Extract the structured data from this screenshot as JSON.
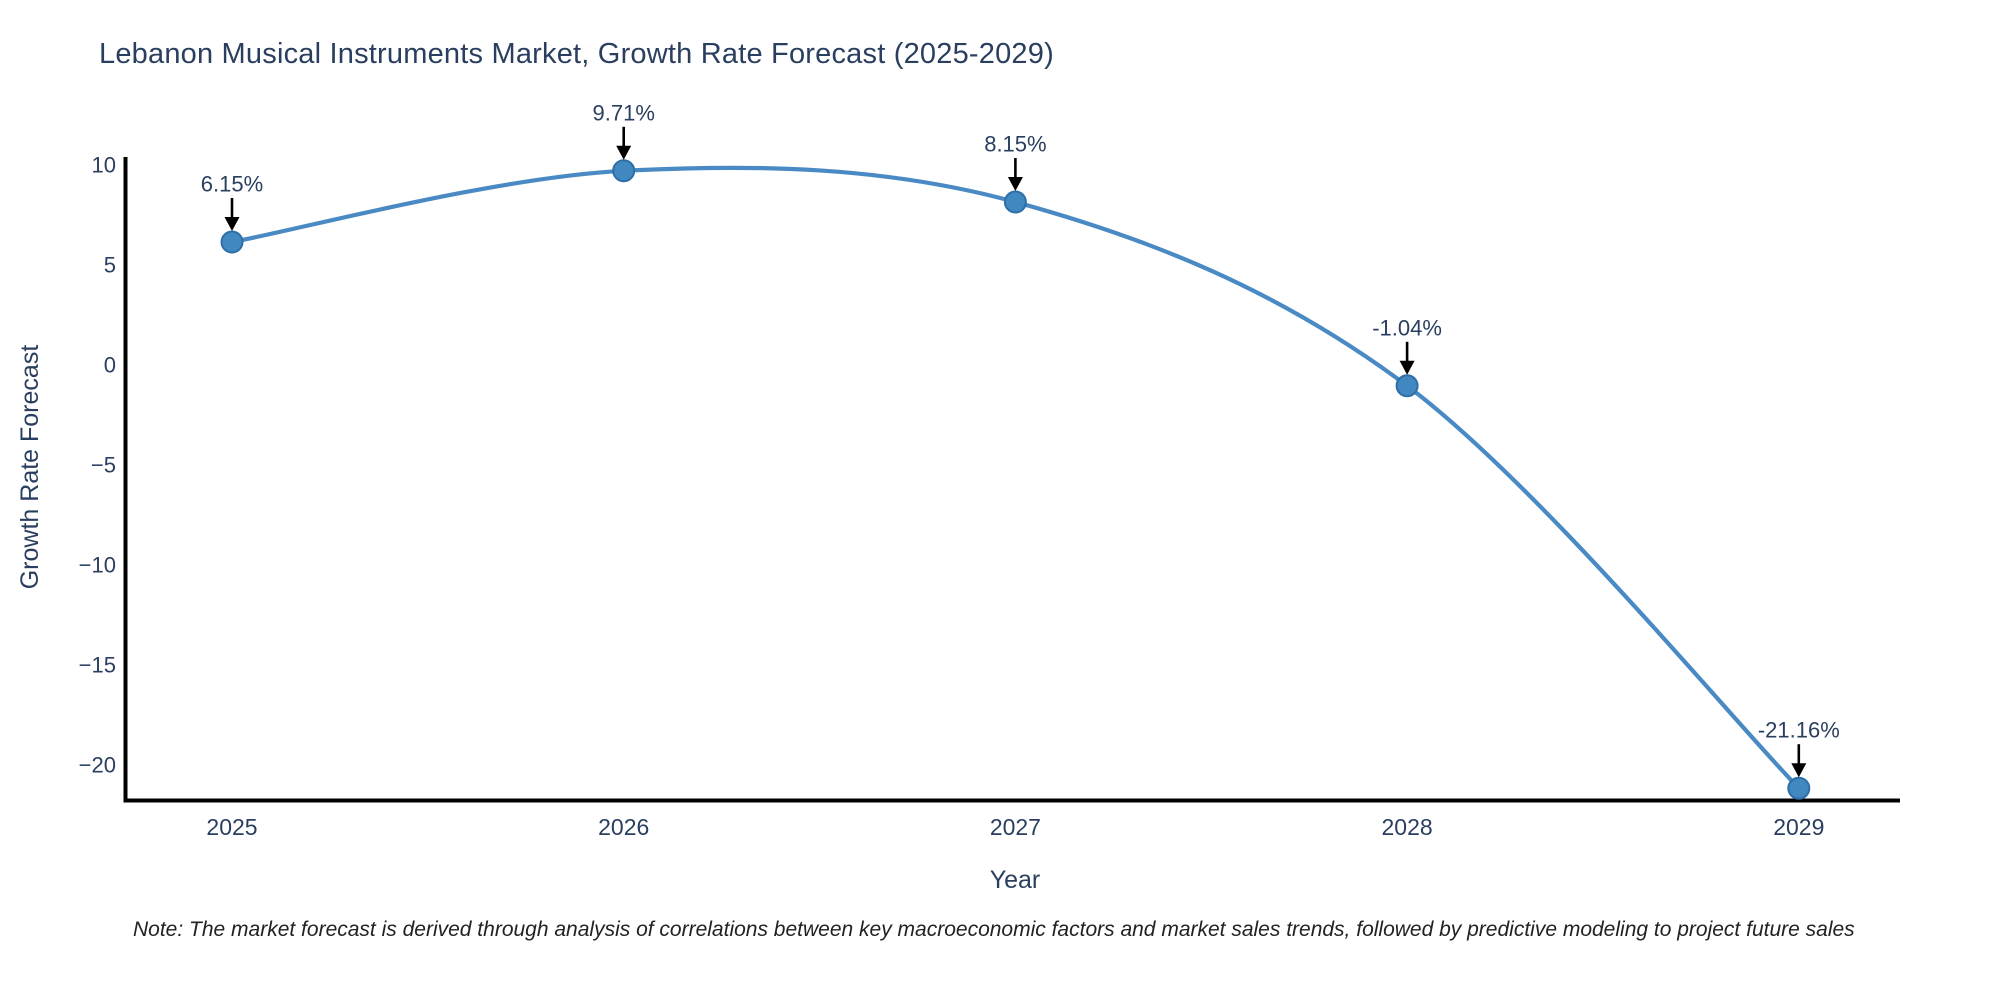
{
  "figure": {
    "title": "Lebanon Musical Instruments Market, Growth Rate Forecast (2025-2029)",
    "note": "Note: The market forecast is derived through analysis of correlations between key macroeconomic factors and market sales trends, followed by predictive modeling to project future sales"
  },
  "chart_data": {
    "type": "line",
    "title": "Lebanon Musical Instruments Market, Growth Rate Forecast (2025-2029)",
    "x": [
      2025,
      2026,
      2027,
      2028,
      2029
    ],
    "y": [
      6.15,
      9.71,
      8.15,
      -1.04,
      -21.16
    ],
    "point_labels": [
      "6.15%",
      "9.71%",
      "8.15%",
      "-1.04%",
      "-21.16%"
    ],
    "xlabel": "Year",
    "ylabel": "Growth Rate Forecast",
    "xtick_labels": [
      "2025",
      "2026",
      "2027",
      "2028",
      "2029"
    ],
    "ytick_values": [
      10,
      5,
      0,
      -5,
      -10,
      -15,
      -20
    ],
    "ylim": [
      -21.7,
      10.4
    ],
    "grid": false,
    "legend": "none",
    "line_shape": "spline",
    "annotation_arrows": "down-to-point",
    "colors": {
      "line": "#4a8ac4",
      "marker_fill": "#4187c0",
      "marker_edge": "#2e6ea7",
      "text": "#2a3f5f",
      "arrow": "#000000",
      "axis": "#000000",
      "background": "#ffffff"
    }
  }
}
